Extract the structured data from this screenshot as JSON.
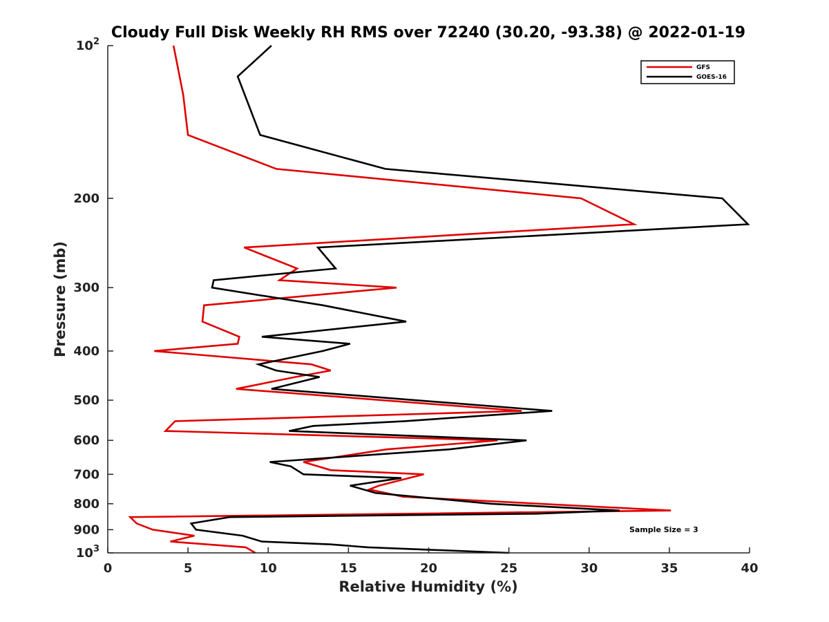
{
  "chart_data": {
    "type": "line",
    "title": "Cloudy Full Disk Weekly RH RMS over 72240 (30.20, -93.38) @ 2022-01-19",
    "xlabel": "Relative Humidity (%)",
    "ylabel": "Pressure (mb)",
    "xlim": [
      0,
      40
    ],
    "ylim": [
      100,
      1000
    ],
    "yscale": "log",
    "y_reversed": true,
    "xticks": [
      "0",
      "5",
      "10",
      "15",
      "20",
      "25",
      "30",
      "35",
      "40"
    ],
    "yticks": [
      {
        "value": 100,
        "base": "10",
        "exp": "2",
        "label": ""
      },
      {
        "value": 200,
        "label": "200"
      },
      {
        "value": 300,
        "label": "300"
      },
      {
        "value": 400,
        "label": "400"
      },
      {
        "value": 500,
        "label": "500"
      },
      {
        "value": 600,
        "label": "600"
      },
      {
        "value": 700,
        "label": "700"
      },
      {
        "value": 800,
        "label": "800"
      },
      {
        "value": 900,
        "label": "900"
      },
      {
        "value": 1000,
        "base": "10",
        "exp": "3",
        "label": ""
      }
    ],
    "legend_position": "top-right",
    "annotation": "Sample Size = 3",
    "series": [
      {
        "name": "GFS",
        "color": "#e00000",
        "points": [
          [
            4.1,
            100
          ],
          [
            4.7,
            125
          ],
          [
            5.0,
            150
          ],
          [
            10.5,
            175
          ],
          [
            29.5,
            200
          ],
          [
            32.8,
            225
          ],
          [
            8.5,
            250
          ],
          [
            11.8,
            275
          ],
          [
            10.7,
            290
          ],
          [
            18.0,
            300
          ],
          [
            6.0,
            325
          ],
          [
            5.9,
            350
          ],
          [
            8.2,
            375
          ],
          [
            8.1,
            387
          ],
          [
            2.9,
            400
          ],
          [
            12.7,
            425
          ],
          [
            13.9,
            437
          ],
          [
            11.7,
            450
          ],
          [
            8.0,
            475
          ],
          [
            25.8,
            525
          ],
          [
            4.2,
            550
          ],
          [
            3.6,
            575
          ],
          [
            24.3,
            600
          ],
          [
            17.4,
            625
          ],
          [
            12.2,
            662
          ],
          [
            13.9,
            687
          ],
          [
            19.7,
            700
          ],
          [
            16.9,
            737
          ],
          [
            16.3,
            750
          ],
          [
            18.4,
            775
          ],
          [
            35.1,
            825
          ],
          [
            1.4,
            850
          ],
          [
            1.8,
            875
          ],
          [
            2.8,
            900
          ],
          [
            5.4,
            925
          ],
          [
            3.9,
            950
          ],
          [
            8.6,
            975
          ],
          [
            9.2,
            1000
          ]
        ]
      },
      {
        "name": "GOES-16",
        "color": "#000000",
        "points": [
          [
            10.2,
            100
          ],
          [
            8.1,
            115
          ],
          [
            9.5,
            150
          ],
          [
            17.3,
            175
          ],
          [
            38.3,
            200
          ],
          [
            39.9,
            225
          ],
          [
            13.1,
            250
          ],
          [
            14.2,
            275
          ],
          [
            6.6,
            290
          ],
          [
            6.5,
            300
          ],
          [
            13.4,
            325
          ],
          [
            18.6,
            350
          ],
          [
            9.6,
            375
          ],
          [
            15.1,
            387
          ],
          [
            13.4,
            400
          ],
          [
            9.4,
            425
          ],
          [
            10.5,
            437
          ],
          [
            13.2,
            450
          ],
          [
            10.2,
            475
          ],
          [
            27.7,
            525
          ],
          [
            18.5,
            550
          ],
          [
            12.8,
            562
          ],
          [
            11.3,
            575
          ],
          [
            26.1,
            600
          ],
          [
            21.3,
            625
          ],
          [
            10.1,
            662
          ],
          [
            11.4,
            675
          ],
          [
            12.2,
            700
          ],
          [
            18.3,
            712
          ],
          [
            15.1,
            737
          ],
          [
            16.7,
            762
          ],
          [
            23.9,
            800
          ],
          [
            31.9,
            825
          ],
          [
            26.7,
            837
          ],
          [
            7.6,
            850
          ],
          [
            5.2,
            875
          ],
          [
            5.5,
            900
          ],
          [
            8.4,
            925
          ],
          [
            9.6,
            950
          ],
          [
            13.9,
            962
          ],
          [
            16.2,
            975
          ],
          [
            25.0,
            1000
          ]
        ]
      }
    ]
  }
}
